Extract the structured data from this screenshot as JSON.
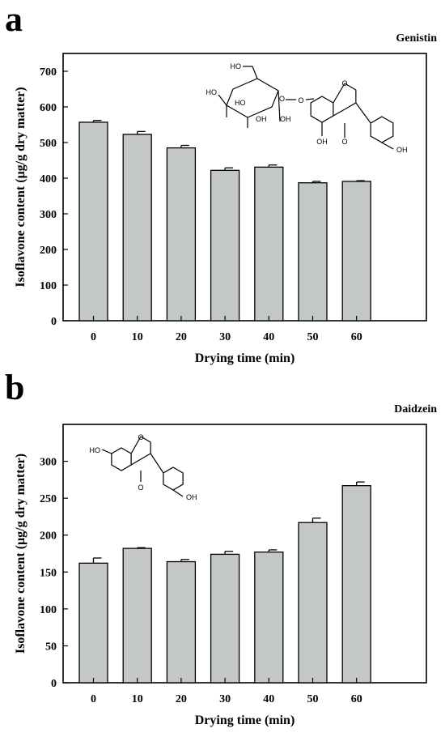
{
  "panels": [
    {
      "letter": "a"
    },
    {
      "letter": "b"
    }
  ],
  "chart_data": [
    {
      "type": "bar",
      "title": "Genistin",
      "xlabel": "Drying time (min)",
      "ylabel": "Isoflavone  content (μg/g dry matter)",
      "categories": [
        "0",
        "10",
        "20",
        "30",
        "40",
        "50",
        "60"
      ],
      "values": [
        557,
        523,
        485,
        422,
        431,
        387,
        391
      ],
      "errors": [
        5,
        8,
        7,
        7,
        6,
        4,
        2
      ],
      "ylim": [
        0,
        750
      ],
      "yticks": [
        0,
        100,
        200,
        300,
        400,
        500,
        600,
        700
      ],
      "bar_color": "#c4c8c5",
      "inset": {
        "name": "genistin-structure",
        "labels": [
          "HO",
          "HO",
          "HO",
          "OH",
          "OH",
          "O",
          "O",
          "O",
          "O",
          "OH",
          "O",
          "OH"
        ]
      }
    },
    {
      "type": "bar",
      "title": "Daidzein",
      "xlabel": "Drying time (min)",
      "ylabel": "Isoflavone  content (μg/g dry matter)",
      "categories": [
        "0",
        "10",
        "20",
        "30",
        "40",
        "50",
        "60"
      ],
      "values": [
        162,
        182,
        164,
        174,
        177,
        217,
        267
      ],
      "errors": [
        7,
        1,
        3,
        4,
        3,
        6,
        5
      ],
      "ylim": [
        0,
        350
      ],
      "yticks": [
        0,
        50,
        100,
        150,
        200,
        250,
        300
      ],
      "bar_color": "#c4c8c5",
      "inset": {
        "name": "daidzein-structure",
        "labels": [
          "HO",
          "O",
          "O",
          "OH"
        ]
      }
    }
  ]
}
